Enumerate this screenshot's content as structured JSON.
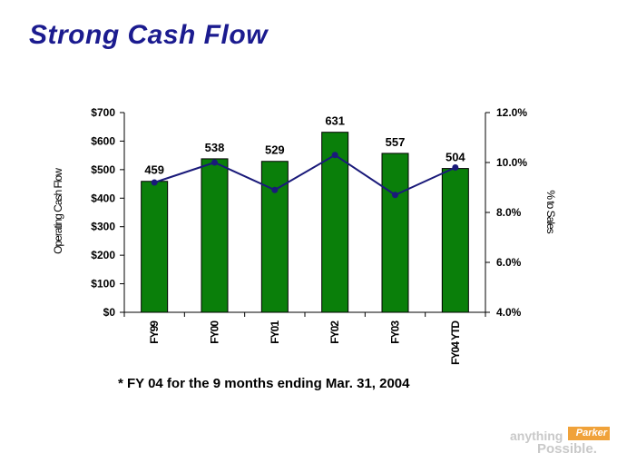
{
  "title": "Strong Cash Flow",
  "footnote": "* FY 04 for the 9 months ending Mar. 31, 2004",
  "logo": {
    "word1": "anything",
    "word2": "Possible.",
    "brand": "Parker"
  },
  "colors": {
    "bar": "#0a7f0a",
    "line": "#1a1a7a",
    "title": "#1b1b8f"
  },
  "chart_data": {
    "type": "bar+line",
    "categories": [
      "FY99",
      "FY00",
      "FY01",
      "FY02",
      "FY03",
      "FY04 YTD"
    ],
    "series": [
      {
        "values": [
          459,
          538,
          529,
          631,
          557,
          504
        ],
        "axis": "left",
        "kind": "bar"
      },
      {
        "values": [
          9.2,
          10.0,
          8.9,
          10.3,
          8.7,
          9.8
        ],
        "axis": "right",
        "kind": "line"
      }
    ],
    "data_labels": [
      "459",
      "538",
      "529",
      "631",
      "557",
      "504"
    ],
    "ylabel_left": "Operating Cash Flow",
    "ylabel_right": "% to Sales",
    "ylim_left": [
      0,
      700
    ],
    "ylim_right": [
      4.0,
      12.0
    ],
    "yticks_left": [
      "$0",
      "$100",
      "$200",
      "$300",
      "$400",
      "$500",
      "$600",
      "$700"
    ],
    "yticks_right": [
      "4.0%",
      "6.0%",
      "8.0%",
      "10.0%",
      "12.0%"
    ],
    "grid": false
  }
}
